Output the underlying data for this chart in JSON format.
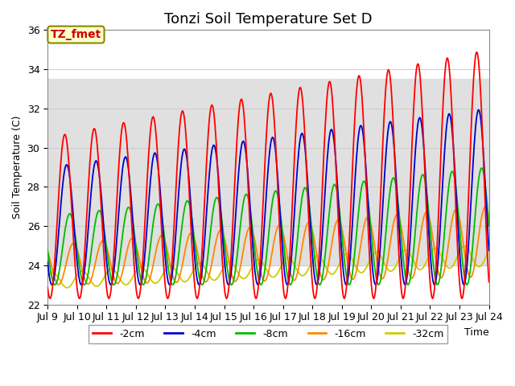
{
  "title": "Tonzi Soil Temperature Set D",
  "xlabel": "Time",
  "ylabel": "Soil Temperature (C)",
  "ylim": [
    22,
    36
  ],
  "xlim_days": [
    9,
    24
  ],
  "annotation_text": "TZ_fmet",
  "annotation_box_color": "#ffffcc",
  "annotation_text_color": "#cc0000",
  "shaded_region": [
    24.0,
    33.5
  ],
  "shaded_color": "#e0e0e0",
  "legend_entries": [
    "-2cm",
    "-4cm",
    "-8cm",
    "-16cm",
    "-32cm"
  ],
  "line_colors": [
    "#ff0000",
    "#0000cc",
    "#00bb00",
    "#ff8800",
    "#cccc00"
  ],
  "background_color": "#ffffff",
  "grid_color": "#cccccc",
  "xtick_labels": [
    "Jul 9",
    "Jul 10",
    "Jul 11",
    "Jul 12",
    "Jul 13",
    "Jul 14",
    "Jul 15",
    "Jul 16",
    "Jul 17",
    "Jul 18",
    "Jul 19",
    "Jul 20",
    "Jul 21",
    "Jul 22",
    "Jul 23",
    "Jul 24"
  ],
  "title_fontsize": 13
}
